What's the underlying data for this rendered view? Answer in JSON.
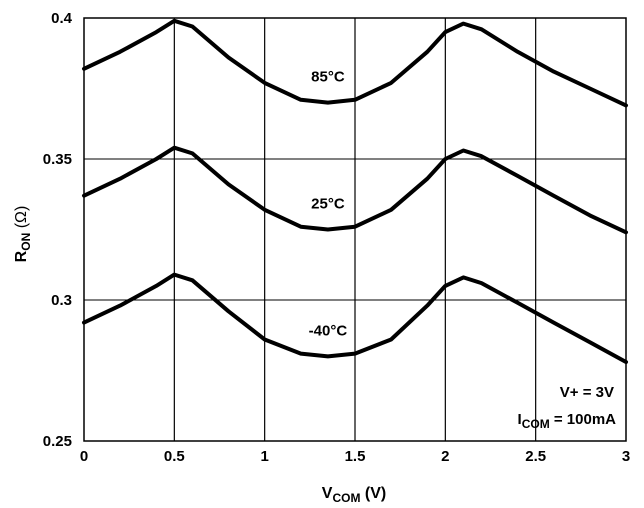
{
  "chart_data": {
    "type": "line",
    "xlabel": "V",
    "xlabel_sub": "COM",
    "xlabel_unit": " (V)",
    "ylabel": "R",
    "ylabel_sub": "ON",
    "ylabel_unit": " (Ω)",
    "xlim": [
      0,
      3
    ],
    "ylim": [
      0.25,
      0.4
    ],
    "x_ticks": [
      0,
      0.5,
      1,
      1.5,
      2,
      2.5,
      3
    ],
    "x_tick_labels": [
      "0",
      "0.5",
      "1",
      "1.5",
      "2",
      "2.5",
      "3"
    ],
    "y_ticks": [
      0.25,
      0.3,
      0.35,
      0.4
    ],
    "y_tick_labels": [
      "0.25",
      "0.3",
      "0.35",
      "0.4"
    ],
    "grid": true,
    "series": [
      {
        "name": "85°C",
        "x": [
          0,
          0.2,
          0.4,
          0.5,
          0.6,
          0.8,
          1.0,
          1.2,
          1.35,
          1.5,
          1.7,
          1.9,
          2.0,
          2.1,
          2.2,
          2.4,
          2.6,
          2.8,
          3.0
        ],
        "values": [
          0.382,
          0.388,
          0.395,
          0.399,
          0.397,
          0.386,
          0.377,
          0.371,
          0.37,
          0.371,
          0.377,
          0.388,
          0.395,
          0.398,
          0.396,
          0.388,
          0.381,
          0.375,
          0.369
        ]
      },
      {
        "name": "25°C",
        "x": [
          0,
          0.2,
          0.4,
          0.5,
          0.6,
          0.8,
          1.0,
          1.2,
          1.35,
          1.5,
          1.7,
          1.9,
          2.0,
          2.1,
          2.2,
          2.4,
          2.6,
          2.8,
          3.0
        ],
        "values": [
          0.337,
          0.343,
          0.35,
          0.354,
          0.352,
          0.341,
          0.332,
          0.326,
          0.325,
          0.326,
          0.332,
          0.343,
          0.35,
          0.353,
          0.351,
          0.344,
          0.337,
          0.33,
          0.324
        ]
      },
      {
        "name": "-40°C",
        "x": [
          0,
          0.2,
          0.4,
          0.5,
          0.6,
          0.8,
          1.0,
          1.2,
          1.35,
          1.5,
          1.7,
          1.9,
          2.0,
          2.1,
          2.2,
          2.4,
          2.6,
          2.8,
          3.0
        ],
        "values": [
          0.292,
          0.298,
          0.305,
          0.309,
          0.307,
          0.296,
          0.286,
          0.281,
          0.28,
          0.281,
          0.286,
          0.298,
          0.305,
          0.308,
          0.306,
          0.299,
          0.292,
          0.285,
          0.278
        ]
      }
    ],
    "series_label_positions": [
      {
        "name": "85°C",
        "x": 1.35,
        "y": 0.3775
      },
      {
        "name": "25°C",
        "x": 1.35,
        "y": 0.3325
      },
      {
        "name": "-40°C",
        "x": 1.35,
        "y": 0.2875
      }
    ],
    "annotations": {
      "line1": "V+ = 3V",
      "line2_main": "I",
      "line2_sub": "COM",
      "line2_rest": " = 100mA"
    }
  }
}
